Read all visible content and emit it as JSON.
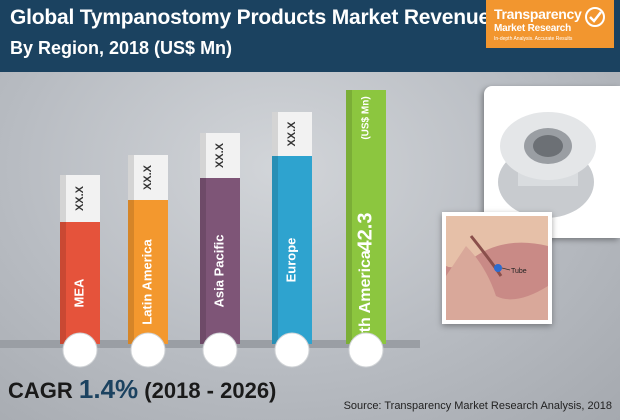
{
  "header": {
    "title": "Global Tympanostomy Products Market Revenue",
    "subtitle": "By Region, 2018 (US$ Mn)"
  },
  "logo": {
    "line1": "Transparency",
    "line2": "Market Research",
    "line3": "In-depth Analysis. Accurate Results"
  },
  "chart_data": {
    "type": "bar",
    "title": "Global Tympanostomy Products Market Revenue",
    "subtitle": "By Region, 2018 (US$ Mn)",
    "categories": [
      "MEA",
      "Latin America",
      "Asia Pacific",
      "Europe",
      "North America"
    ],
    "series": [
      {
        "values": [
          null,
          null,
          null,
          null,
          42.3
        ],
        "labels": [
          "XX.X",
          "XX.X",
          "XX.X",
          "XX.X",
          "42.3"
        ]
      }
    ],
    "unit": "US$ Mn",
    "highlight_unit_label": "(US$ Mn)",
    "bar_colors": [
      "#e5533b",
      "#f3982e",
      "#7e5577",
      "#2ea3cf",
      "#8cc63f"
    ],
    "xlabel": "",
    "ylabel": ""
  },
  "footer": {
    "cagr_label": "CAGR",
    "cagr_value": "1.4%",
    "cagr_period": "(2018 - 2026)",
    "source": "Source: Transparency Market Research Analysis, 2018"
  },
  "images": {
    "ear_label": "Tube"
  },
  "colors": {
    "header_bg": "#1b4260",
    "logo_bg": "#f2962f"
  }
}
